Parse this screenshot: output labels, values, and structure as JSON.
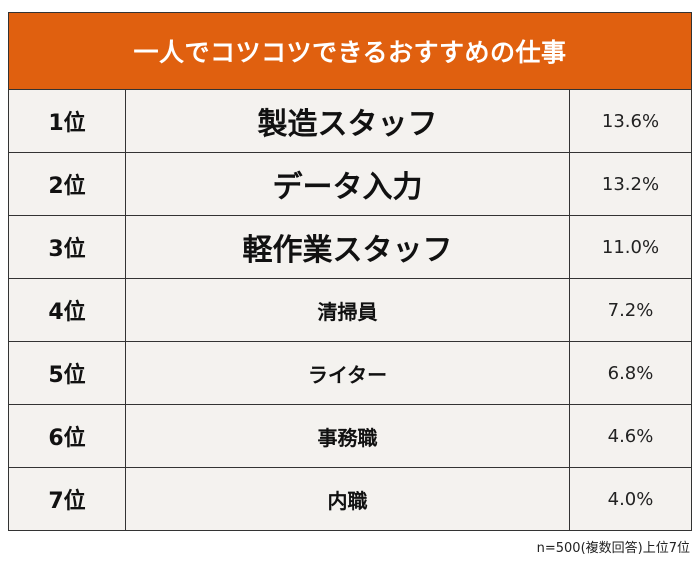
{
  "title": "一人でコツコツできるおすすめの仕事",
  "colors": {
    "header_background": "#e0600f",
    "header_text": "#ffffff",
    "row_background": "#f4f2ef",
    "border": "#333333"
  },
  "rows": [
    {
      "rank": "1位",
      "job": "製造スタッフ",
      "percent": "13.6%",
      "emphasis": "large"
    },
    {
      "rank": "2位",
      "job": "データ入力",
      "percent": "13.2%",
      "emphasis": "large"
    },
    {
      "rank": "3位",
      "job": "軽作業スタッフ",
      "percent": "11.0%",
      "emphasis": "large"
    },
    {
      "rank": "4位",
      "job": "清掃員",
      "percent": "7.2%",
      "emphasis": "normal"
    },
    {
      "rank": "5位",
      "job": "ライター",
      "percent": "6.8%",
      "emphasis": "normal"
    },
    {
      "rank": "6位",
      "job": "事務職",
      "percent": "4.6%",
      "emphasis": "normal"
    },
    {
      "rank": "7位",
      "job": "内職",
      "percent": "4.0%",
      "emphasis": "normal"
    }
  ],
  "footnote": "n=500(複数回答)上位7位"
}
